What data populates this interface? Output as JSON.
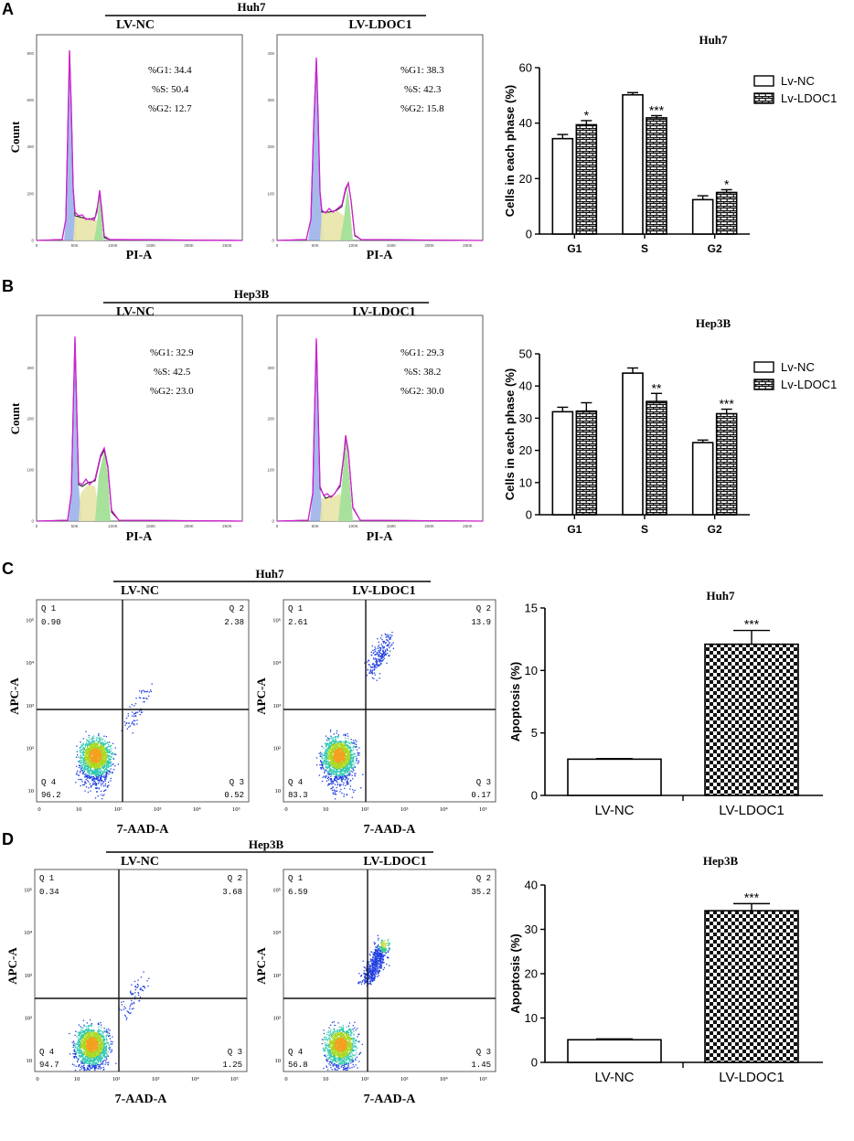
{
  "panels": [
    {
      "letter": "A",
      "cell_line": "Huh7",
      "group_labels": [
        "LV-NC",
        "LV-LDOC1"
      ],
      "histograms": [
        {
          "y_label": "Count",
          "x_label": "PI-A",
          "stats": [
            "%G1: 34.4",
            "%S: 50.4",
            "%G2: 12.7"
          ],
          "y_ticks": [
            "0",
            "200",
            "400",
            "600",
            "800"
          ],
          "x_ticks": [
            "0",
            "50K",
            "100K",
            "150K",
            "200K",
            "250K"
          ]
        },
        {
          "y_label": "",
          "x_label": "PI-A",
          "stats": [
            "%G1: 38.3",
            "%S: 42.3",
            "%G2: 15.8"
          ],
          "y_ticks": [
            "0",
            "100",
            "200",
            "300",
            "400"
          ],
          "x_ticks": [
            "0",
            "50K",
            "100K",
            "150K",
            "200K",
            "250K"
          ]
        }
      ]
    },
    {
      "letter": "B",
      "cell_line": "Hep3B",
      "group_labels": [
        "LV-NC",
        "LV-LDOC1"
      ],
      "histograms": [
        {
          "y_label": "Count",
          "x_label": "PI-A",
          "stats": [
            "%G1: 32.9",
            "%S: 42.5",
            "%G2: 23.0"
          ],
          "y_ticks": [
            "0",
            "100",
            "200",
            "300"
          ],
          "x_ticks": [
            "0",
            "50K",
            "100K",
            "150K",
            "200K",
            "250K"
          ]
        },
        {
          "y_label": "",
          "x_label": "PI-A",
          "stats": [
            "%G1: 29.3",
            "%S: 38.2",
            "%G2: 30.0"
          ],
          "y_ticks": [
            "0",
            "100",
            "200",
            "300"
          ],
          "x_ticks": [
            "0",
            "50K",
            "100K",
            "150K",
            "200K",
            "250K"
          ]
        }
      ]
    },
    {
      "letter": "C",
      "cell_line": "Huh7",
      "group_labels": [
        "LV-NC",
        "LV-LDOC1"
      ],
      "scatters": [
        {
          "y_label": "APC-A",
          "x_label": "7-AAD-A",
          "quadrants": {
            "Q1": "0.90",
            "Q2": "2.38",
            "Q3": "0.52",
            "Q4": "96.2"
          }
        },
        {
          "y_label": "APC-A",
          "x_label": "7-AAD-A",
          "quadrants": {
            "Q1": "2.61",
            "Q2": "13.9",
            "Q3": "0.17",
            "Q4": "83.3"
          }
        }
      ]
    },
    {
      "letter": "D",
      "cell_line": "Hep3B",
      "group_labels": [
        "LV-NC",
        "LV-LDOC1"
      ],
      "scatters": [
        {
          "y_label": "APC-A",
          "x_label": "7-AAD-A",
          "quadrants": {
            "Q1": "0.34",
            "Q2": "3.68",
            "Q3": "1.25",
            "Q4": "94.7"
          }
        },
        {
          "y_label": "APC-A",
          "x_label": "7-AAD-A",
          "quadrants": {
            "Q1": "6.59",
            "Q2": "35.2",
            "Q3": "1.45",
            "Q4": "56.8"
          }
        }
      ]
    }
  ],
  "quadrant_names": {
    "Q1": "Q 1",
    "Q2": "Q 2",
    "Q3": "Q 3",
    "Q4": "Q 4"
  },
  "scatter_axis_ticks": [
    "0",
    "10",
    "10²",
    "10³",
    "10⁴",
    "10⁵"
  ],
  "chart_data": [
    {
      "type": "bar",
      "title": "Huh7",
      "xlabel": "",
      "ylabel": "Cells in each phase (%)",
      "categories": [
        "G1",
        "S",
        "G2"
      ],
      "ylim": [
        0,
        60
      ],
      "yticks": [
        0,
        20,
        40,
        60
      ],
      "series": [
        {
          "name": "Lv-NC",
          "values": [
            34.4,
            50.2,
            12.4
          ],
          "errors": [
            1.5,
            0.8,
            1.4
          ],
          "pattern": "white",
          "sig": [
            "",
            "",
            ""
          ]
        },
        {
          "name": "Lv-LDOC1",
          "values": [
            39.4,
            41.9,
            15.0
          ],
          "errors": [
            1.5,
            0.8,
            1.0
          ],
          "pattern": "brick",
          "sig": [
            "*",
            "***",
            "*"
          ]
        }
      ],
      "legend_position": "top-right"
    },
    {
      "type": "bar",
      "title": "Hep3B",
      "xlabel": "",
      "ylabel": "Cells in each phase (%)",
      "categories": [
        "G1",
        "S",
        "G2"
      ],
      "ylim": [
        0,
        50
      ],
      "yticks": [
        0,
        10,
        20,
        30,
        40,
        50
      ],
      "series": [
        {
          "name": "Lv-NC",
          "values": [
            32.0,
            44.0,
            22.4
          ],
          "errors": [
            1.4,
            1.6,
            0.8
          ],
          "pattern": "white",
          "sig": [
            "",
            "",
            ""
          ]
        },
        {
          "name": "Lv-LDOC1",
          "values": [
            32.2,
            35.2,
            31.4
          ],
          "errors": [
            2.6,
            2.5,
            1.4
          ],
          "pattern": "brick",
          "sig": [
            "",
            "**",
            "***"
          ]
        }
      ],
      "legend_position": "top-right"
    },
    {
      "type": "bar",
      "title": "Huh7",
      "xlabel": "",
      "ylabel": "Apoptosis (%)",
      "categories": [
        "LV-NC",
        "LV-LDOC1"
      ],
      "ylim": [
        0,
        15
      ],
      "yticks": [
        0,
        5,
        10,
        15
      ],
      "values": [
        2.9,
        12.1
      ],
      "errors": [
        0.05,
        1.1
      ],
      "patterns": [
        "white",
        "checker"
      ],
      "sig": [
        "",
        "***"
      ]
    },
    {
      "type": "bar",
      "title": "Hep3B",
      "xlabel": "",
      "ylabel": "Apoptosis (%)",
      "categories": [
        "LV-NC",
        "LV-LDOC1"
      ],
      "ylim": [
        0,
        40
      ],
      "yticks": [
        0,
        10,
        20,
        30,
        40
      ],
      "values": [
        5.1,
        34.2
      ],
      "errors": [
        0.2,
        1.6
      ],
      "patterns": [
        "white",
        "checker"
      ],
      "sig": [
        "",
        "***"
      ]
    }
  ]
}
